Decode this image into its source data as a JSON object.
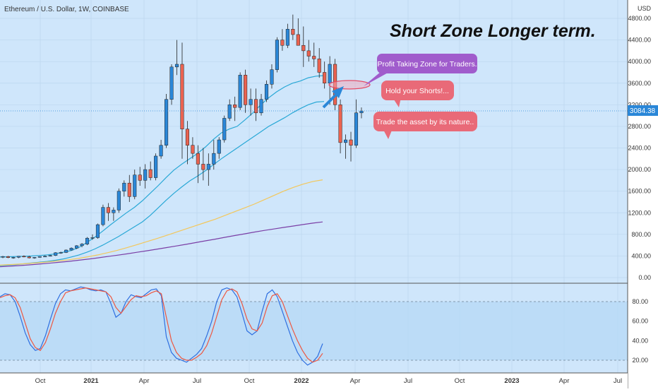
{
  "header": {
    "symbol_title": "Ethereum / U.S. Dollar, 1W, COINBASE",
    "currency": "USD"
  },
  "annotations": {
    "headline": "Short Zone Longer term.",
    "bubble_profit": "Profit Taking Zone for Traders.",
    "bubble_hold": "Hold your Shorts!...",
    "bubble_trade": "Trade the asset by its nature.."
  },
  "price_tag": "3084.38",
  "colors": {
    "background": "#cfe6fb",
    "up": "#2a87d8",
    "down": "#ea6250",
    "ma_short": "#29a8d6",
    "ma_mid": "#f3c75b",
    "ma_long": "#7b3fa6",
    "stoch_k": "#2f6fe0",
    "stoch_d": "#ee5740",
    "bubble_purple": "#a05ccc",
    "bubble_red": "#e96a78",
    "arrow": "#2a87d8"
  },
  "chart_data": [
    {
      "type": "candlestick",
      "title": "Ethereum / U.S. Dollar, 1W, COINBASE",
      "y_unit": "USD",
      "x_ticks": [
        "Oct",
        "2021",
        "Apr",
        "Jul",
        "Oct",
        "2022",
        "Apr",
        "Jul",
        "Oct",
        "2023",
        "Apr",
        "Jul"
      ],
      "y_ticks": [
        "4800.00",
        "4400.00",
        "4000.00",
        "3600.00",
        "3200.00",
        "2800.00",
        "2400.00",
        "2000.00",
        "1600.00",
        "1200.00",
        "800.00",
        "400.00",
        "0.00"
      ],
      "ylim": [
        0,
        5000
      ],
      "last_price": 3084.38,
      "profit_taking_zone": 3600,
      "ohlc": [
        [
          380,
          400,
          360,
          390
        ],
        [
          390,
          400,
          360,
          370
        ],
        [
          370,
          385,
          350,
          375
        ],
        [
          375,
          400,
          360,
          395
        ],
        [
          395,
          410,
          375,
          385
        ],
        [
          385,
          400,
          355,
          365
        ],
        [
          365,
          380,
          350,
          375
        ],
        [
          375,
          395,
          370,
          390
        ],
        [
          390,
          410,
          380,
          395
        ],
        [
          395,
          420,
          390,
          410
        ],
        [
          410,
          470,
          400,
          460
        ],
        [
          460,
          480,
          440,
          465
        ],
        [
          465,
          520,
          455,
          510
        ],
        [
          510,
          560,
          500,
          545
        ],
        [
          545,
          600,
          530,
          590
        ],
        [
          590,
          640,
          560,
          620
        ],
        [
          620,
          750,
          600,
          730
        ],
        [
          730,
          800,
          700,
          740
        ],
        [
          740,
          1000,
          720,
          980
        ],
        [
          980,
          1350,
          950,
          1300
        ],
        [
          1300,
          1380,
          1050,
          1200
        ],
        [
          1200,
          1300,
          1050,
          1250
        ],
        [
          1250,
          1650,
          1200,
          1600
        ],
        [
          1600,
          1800,
          1500,
          1750
        ],
        [
          1750,
          1900,
          1400,
          1500
        ],
        [
          1500,
          2000,
          1450,
          1900
        ],
        [
          1900,
          2050,
          1700,
          1800
        ],
        [
          1800,
          2100,
          1650,
          2000
        ],
        [
          2000,
          2150,
          1800,
          1850
        ],
        [
          1850,
          2300,
          1800,
          2250
        ],
        [
          2250,
          2550,
          2200,
          2450
        ],
        [
          2450,
          3400,
          2400,
          3300
        ],
        [
          3300,
          3950,
          3200,
          3900
        ],
        [
          3900,
          4400,
          3750,
          3950
        ],
        [
          3950,
          4350,
          2200,
          2750
        ],
        [
          2750,
          2900,
          2100,
          2450
        ],
        [
          2450,
          2600,
          2200,
          2300
        ],
        [
          2300,
          2450,
          1750,
          2100
        ],
        [
          2100,
          2400,
          1800,
          2000
        ],
        [
          2000,
          2300,
          1700,
          2100
        ],
        [
          2100,
          2550,
          2000,
          2300
        ],
        [
          2300,
          2600,
          2200,
          2550
        ],
        [
          2550,
          3000,
          2500,
          2950
        ],
        [
          2950,
          3300,
          2900,
          3200
        ],
        [
          3200,
          3350,
          2900,
          3150
        ],
        [
          3150,
          3800,
          3100,
          3750
        ],
        [
          3750,
          3850,
          3050,
          3200
        ],
        [
          3200,
          3500,
          3000,
          3300
        ],
        [
          3300,
          3500,
          2900,
          3050
        ],
        [
          3050,
          3400,
          3000,
          3300
        ],
        [
          3300,
          3650,
          3250,
          3580
        ],
        [
          3580,
          3950,
          3500,
          3850
        ],
        [
          3850,
          4450,
          3800,
          4400
        ],
        [
          4400,
          4600,
          4200,
          4300
        ],
        [
          4300,
          4700,
          4250,
          4600
        ],
        [
          4600,
          4870,
          4400,
          4500
        ],
        [
          4500,
          4800,
          4300,
          4300
        ],
        [
          4300,
          4650,
          3900,
          4200
        ],
        [
          4200,
          4400,
          4000,
          4100
        ],
        [
          4100,
          4350,
          3900,
          4050
        ],
        [
          4050,
          4250,
          3700,
          3800
        ],
        [
          3800,
          4000,
          3500,
          3600
        ],
        [
          3600,
          4100,
          3200,
          3950
        ],
        [
          3950,
          4050,
          3100,
          3200
        ],
        [
          3200,
          3300,
          2300,
          2500
        ],
        [
          2500,
          2650,
          2200,
          2550
        ],
        [
          2550,
          2700,
          2150,
          2450
        ],
        [
          2450,
          3300,
          2400,
          3050
        ],
        [
          3050,
          3150,
          2950,
          3084
        ]
      ],
      "moving_averages": [
        {
          "name": "",
          "values": [
            380,
            385,
            390,
            395,
            400,
            410,
            420,
            440,
            470,
            500,
            560,
            650,
            750,
            860,
            980,
            1090,
            1200,
            1300,
            1420,
            1560,
            1700,
            1850,
            1990,
            2100,
            2200,
            2300,
            2420,
            2560,
            2680,
            2750,
            2800,
            2920,
            3050,
            3200,
            3330,
            3440,
            3530,
            3600,
            3640,
            3700,
            3730,
            3740
          ]
        },
        {
          "name": "",
          "values": [
            220,
            230,
            240,
            255,
            270,
            285,
            300,
            320,
            345,
            380,
            420,
            470,
            530,
            600,
            680,
            760,
            850,
            940,
            1030,
            1150,
            1290,
            1430,
            1560,
            1680,
            1790,
            1880,
            1980,
            2090,
            2200,
            2300,
            2400,
            2500,
            2600,
            2700,
            2800,
            2880,
            2960,
            3050,
            3130,
            3200,
            3250,
            3260
          ]
        },
        {
          "name": "",
          "values": [
            230,
            240,
            250,
            262,
            276,
            292,
            310,
            330,
            355,
            385,
            420,
            460,
            505,
            555,
            610,
            665,
            720,
            780,
            840,
            900,
            960,
            1020,
            1080,
            1150,
            1220,
            1290,
            1360,
            1440,
            1520,
            1600,
            1670,
            1730,
            1780,
            1810
          ]
        },
        {
          "name": "",
          "values": [
            200,
            210,
            222,
            235,
            250,
            266,
            283,
            300,
            320,
            342,
            365,
            390,
            415,
            440,
            468,
            496,
            525,
            555,
            585,
            615,
            648,
            680,
            712,
            745,
            778,
            810,
            842,
            872,
            900,
            928,
            955,
            982,
            1008,
            1030
          ]
        }
      ]
    },
    {
      "type": "line",
      "title": "",
      "y_ticks": [
        "80.00",
        "60.00",
        "40.00",
        "20.00"
      ],
      "ylim": [
        10,
        100
      ],
      "bands": [
        80,
        20
      ],
      "series": [
        {
          "name": "",
          "values": [
            85,
            88,
            87,
            80,
            65,
            48,
            36,
            30,
            32,
            45,
            62,
            78,
            88,
            92,
            91,
            93,
            95,
            94,
            92,
            91,
            92,
            90,
            78,
            64,
            68,
            80,
            87,
            85,
            84,
            88,
            92,
            93,
            86,
            44,
            28,
            22,
            20,
            18,
            22,
            26,
            32,
            45,
            60,
            80,
            92,
            94,
            92,
            85,
            68,
            50,
            46,
            50,
            70,
            88,
            92,
            85,
            70,
            55,
            40,
            28,
            20,
            15,
            18,
            24,
            37
          ]
        },
        {
          "name": "",
          "values": [
            84,
            86,
            87,
            84,
            74,
            58,
            42,
            33,
            30,
            38,
            52,
            68,
            80,
            89,
            91,
            92,
            93,
            94,
            93,
            92,
            91,
            90,
            85,
            74,
            68,
            75,
            82,
            86,
            85,
            86,
            89,
            91,
            88,
            64,
            40,
            28,
            22,
            20,
            20,
            23,
            27,
            35,
            48,
            65,
            82,
            91,
            93,
            90,
            78,
            62,
            52,
            50,
            58,
            75,
            86,
            88,
            80,
            66,
            52,
            40,
            30,
            22,
            18,
            20,
            27
          ]
        }
      ]
    }
  ]
}
